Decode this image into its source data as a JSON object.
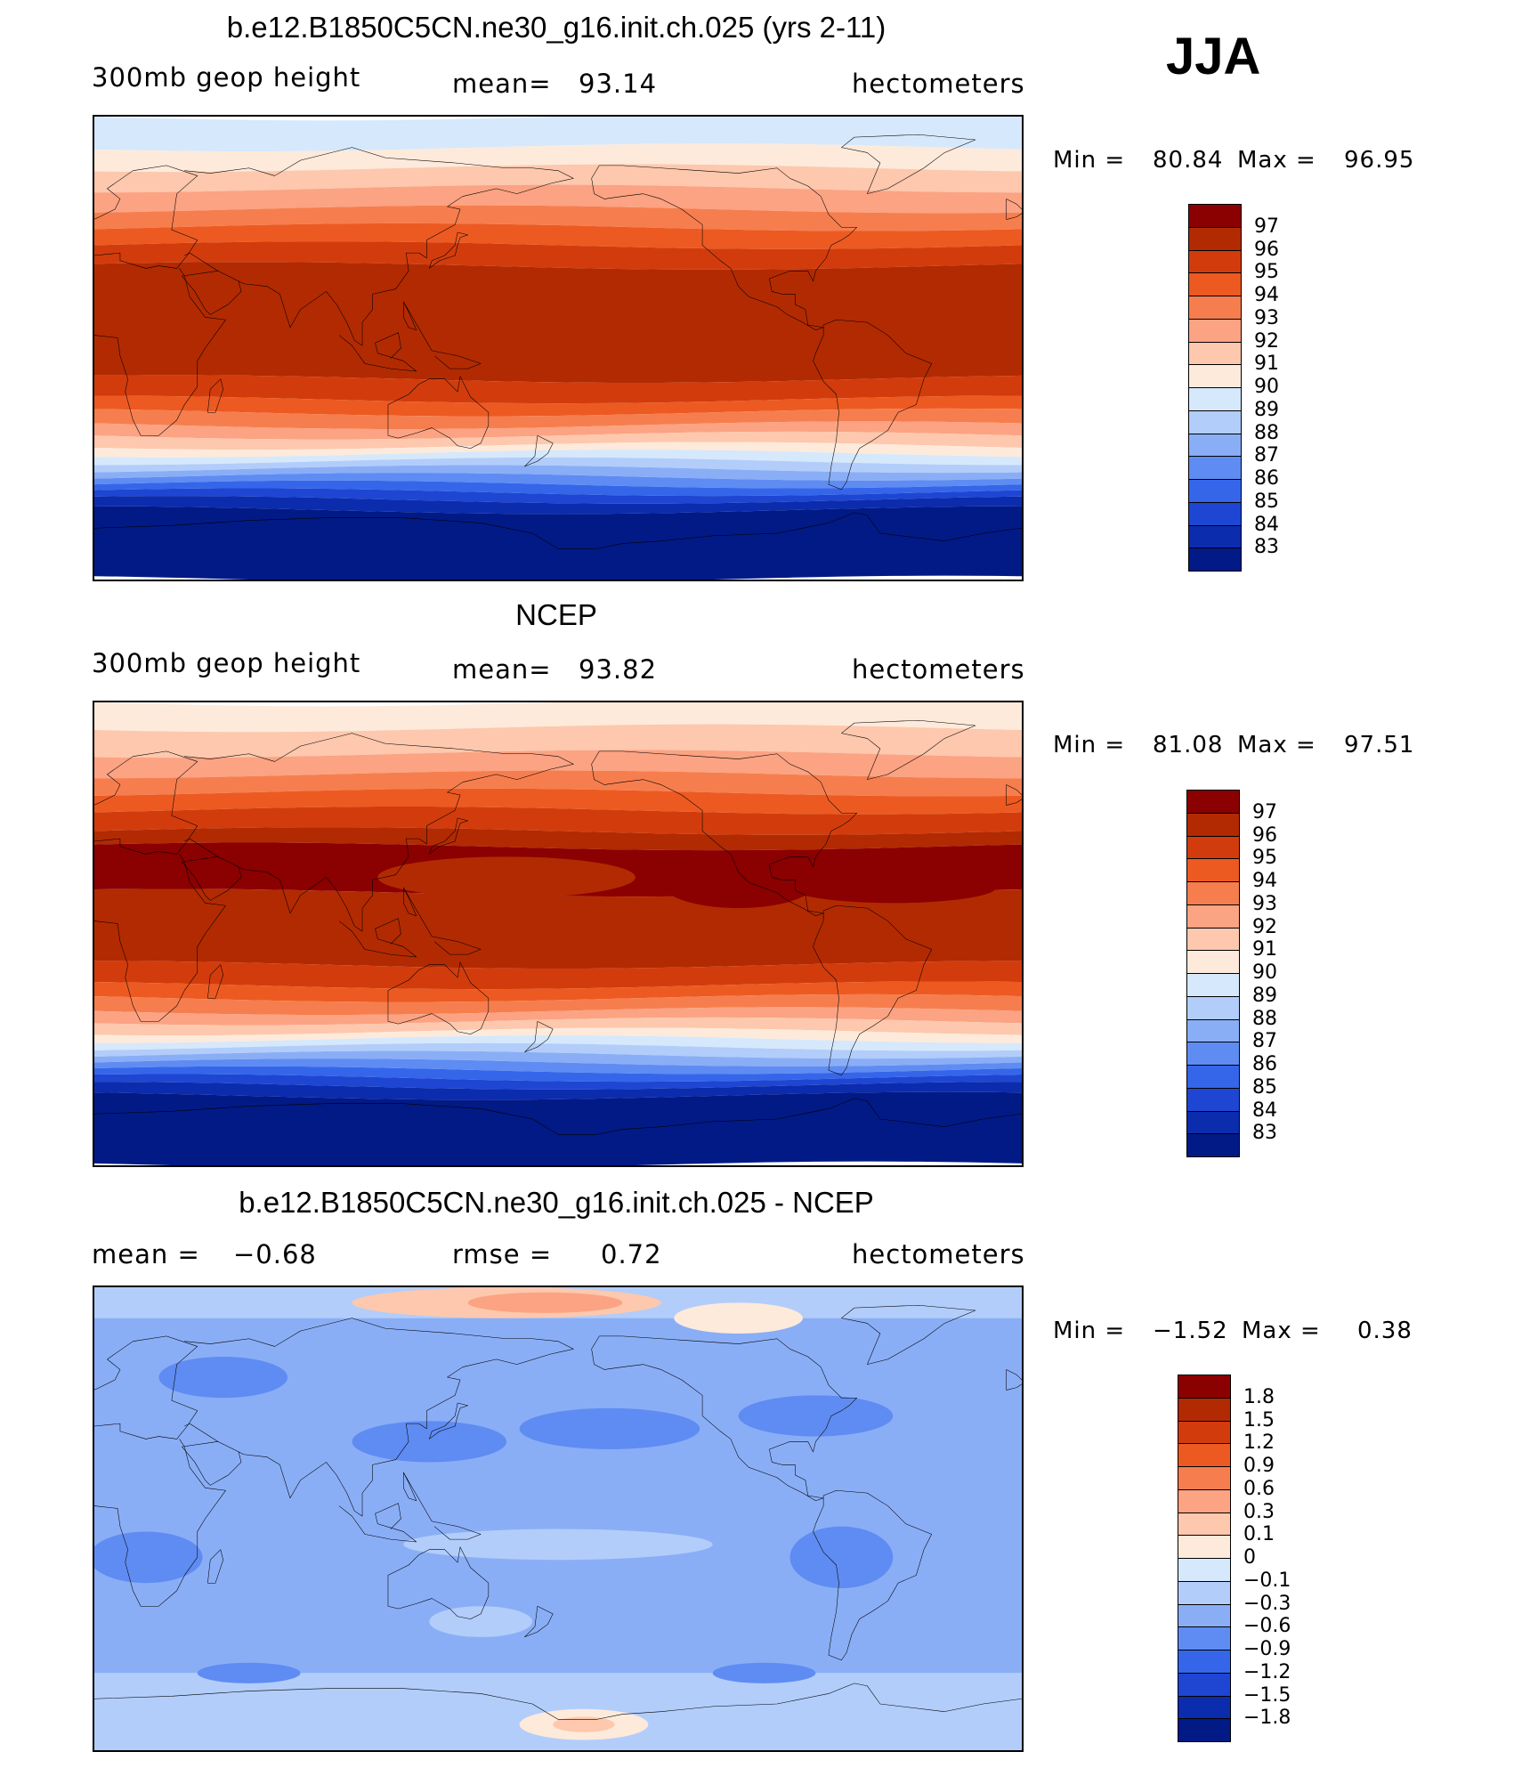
{
  "season": "JJA",
  "units": "hectometers",
  "panels": [
    {
      "title": "b.e12.B1850C5CN.ne30_g16.init.ch.025 (yrs 2-11)",
      "variable": "300mb geop height",
      "stat_label": "mean=",
      "stat_value": "93.14",
      "units": "hectometers",
      "min_label": "Min =",
      "min_value": "80.84",
      "max_label": "Max =",
      "max_value": "96.95",
      "colorbar": {
        "labels": [
          "97",
          "96",
          "95",
          "94",
          "93",
          "92",
          "91",
          "90",
          "89",
          "88",
          "87",
          "86",
          "85",
          "84",
          "83"
        ],
        "colors": [
          "#8b0000",
          "#b22a02",
          "#d23c0c",
          "#ec5a22",
          "#f67e4e",
          "#fba383",
          "#fdc8ad",
          "#fdeadb",
          "#d6e8fb",
          "#b2cdfa",
          "#8aaef6",
          "#5f8cf2",
          "#3566ea",
          "#1e46d2",
          "#0c2cae",
          "#021a86"
        ]
      },
      "bands": [
        {
          "lat_top": 90,
          "lat_bot": 78,
          "color": "#d6e8fb"
        },
        {
          "lat_top": 78,
          "lat_bot": 70,
          "color": "#fdeadb"
        },
        {
          "lat_top": 70,
          "lat_bot": 62,
          "color": "#fdc8ad"
        },
        {
          "lat_top": 62,
          "lat_bot": 54,
          "color": "#fba383"
        },
        {
          "lat_top": 54,
          "lat_bot": 47,
          "color": "#f67e4e"
        },
        {
          "lat_top": 47,
          "lat_bot": 40,
          "color": "#ec5a22"
        },
        {
          "lat_top": 40,
          "lat_bot": 32,
          "color": "#d23c0c"
        },
        {
          "lat_top": 32,
          "lat_bot": -12,
          "color": "#b22a02"
        },
        {
          "lat_top": -12,
          "lat_bot": -20,
          "color": "#d23c0c"
        },
        {
          "lat_top": -20,
          "lat_bot": -25,
          "color": "#ec5a22"
        },
        {
          "lat_top": -25,
          "lat_bot": -30,
          "color": "#f67e4e"
        },
        {
          "lat_top": -30,
          "lat_bot": -34,
          "color": "#fba383"
        },
        {
          "lat_top": -34,
          "lat_bot": -38,
          "color": "#fdc8ad"
        },
        {
          "lat_top": -38,
          "lat_bot": -41,
          "color": "#fdeadb"
        },
        {
          "lat_top": -41,
          "lat_bot": -44,
          "color": "#d6e8fb"
        },
        {
          "lat_top": -44,
          "lat_bot": -47,
          "color": "#b2cdfa"
        },
        {
          "lat_top": -47,
          "lat_bot": -50,
          "color": "#8aaef6"
        },
        {
          "lat_top": -50,
          "lat_bot": -53,
          "color": "#5f8cf2"
        },
        {
          "lat_top": -53,
          "lat_bot": -56,
          "color": "#3566ea"
        },
        {
          "lat_top": -56,
          "lat_bot": -59,
          "color": "#1e46d2"
        },
        {
          "lat_top": -59,
          "lat_bot": -63,
          "color": "#0c2cae"
        },
        {
          "lat_top": -63,
          "lat_bot": -90,
          "color": "#021a86"
        }
      ],
      "blobs": []
    },
    {
      "title": "NCEP",
      "variable": "300mb geop height",
      "stat_label": "mean=",
      "stat_value": "93.82",
      "units": "hectometers",
      "min_label": "Min =",
      "min_value": "81.08",
      "max_label": "Max =",
      "max_value": "97.51",
      "colorbar": {
        "labels": [
          "97",
          "96",
          "95",
          "94",
          "93",
          "92",
          "91",
          "90",
          "89",
          "88",
          "87",
          "86",
          "85",
          "84",
          "83"
        ],
        "colors": [
          "#8b0000",
          "#b22a02",
          "#d23c0c",
          "#ec5a22",
          "#f67e4e",
          "#fba383",
          "#fdc8ad",
          "#fdeadb",
          "#d6e8fb",
          "#b2cdfa",
          "#8aaef6",
          "#5f8cf2",
          "#3566ea",
          "#1e46d2",
          "#0c2cae",
          "#021a86"
        ]
      },
      "bands": [
        {
          "lat_top": 90,
          "lat_bot": 80,
          "color": "#fdeadb"
        },
        {
          "lat_top": 80,
          "lat_bot": 70,
          "color": "#fdc8ad"
        },
        {
          "lat_top": 70,
          "lat_bot": 62,
          "color": "#fba383"
        },
        {
          "lat_top": 62,
          "lat_bot": 55,
          "color": "#f67e4e"
        },
        {
          "lat_top": 55,
          "lat_bot": 48,
          "color": "#ec5a22"
        },
        {
          "lat_top": 48,
          "lat_bot": 40,
          "color": "#d23c0c"
        },
        {
          "lat_top": 40,
          "lat_bot": 34,
          "color": "#b22a02"
        },
        {
          "lat_top": 34,
          "lat_bot": 16,
          "color": "#8b0000"
        },
        {
          "lat_top": 16,
          "lat_bot": -12,
          "color": "#b22a02"
        },
        {
          "lat_top": -12,
          "lat_bot": -20,
          "color": "#d23c0c"
        },
        {
          "lat_top": -20,
          "lat_bot": -25,
          "color": "#ec5a22"
        },
        {
          "lat_top": -25,
          "lat_bot": -30,
          "color": "#f67e4e"
        },
        {
          "lat_top": -30,
          "lat_bot": -34,
          "color": "#fba383"
        },
        {
          "lat_top": -34,
          "lat_bot": -38,
          "color": "#fdc8ad"
        },
        {
          "lat_top": -38,
          "lat_bot": -41,
          "color": "#fdeadb"
        },
        {
          "lat_top": -41,
          "lat_bot": -44,
          "color": "#d6e8fb"
        },
        {
          "lat_top": -44,
          "lat_bot": -47,
          "color": "#b2cdfa"
        },
        {
          "lat_top": -47,
          "lat_bot": -50,
          "color": "#8aaef6"
        },
        {
          "lat_top": -50,
          "lat_bot": -53,
          "color": "#5f8cf2"
        },
        {
          "lat_top": -53,
          "lat_bot": -56,
          "color": "#3566ea"
        },
        {
          "lat_top": -56,
          "lat_bot": -59,
          "color": "#1e46d2"
        },
        {
          "lat_top": -59,
          "lat_bot": -63,
          "color": "#0c2cae"
        },
        {
          "lat_top": -63,
          "lat_bot": -90,
          "color": "#021a86"
        }
      ],
      "blobs": [
        {
          "lon": 160,
          "lat": 22,
          "rlon": 50,
          "rlat": 8,
          "color": "#b22a02"
        },
        {
          "lon": 250,
          "lat": 20,
          "rlon": 30,
          "rlat": 10,
          "color": "#8b0000"
        },
        {
          "lon": 310,
          "lat": 18,
          "rlon": 40,
          "rlat": 6,
          "color": "#8b0000"
        }
      ]
    },
    {
      "title": "b.e12.B1850C5CN.ne30_g16.init.ch.025 - NCEP",
      "variable": "mean =",
      "stat_label": "rmse =",
      "stat_value": "0.72",
      "mean_value": "−0.68",
      "units": "hectometers",
      "min_label": "Min =",
      "min_value": "−1.52",
      "max_label": "Max =",
      "max_value": "0.38",
      "colorbar": {
        "labels": [
          "1.8",
          "1.5",
          "1.2",
          "0.9",
          "0.6",
          "0.3",
          "0.1",
          "0",
          "−0.1",
          "−0.3",
          "−0.6",
          "−0.9",
          "−1.2",
          "−1.5",
          "−1.8"
        ],
        "colors": [
          "#8b0000",
          "#b22a02",
          "#d23c0c",
          "#ec5a22",
          "#f67e4e",
          "#fba383",
          "#fdc8ad",
          "#fdeadb",
          "#d6e8fb",
          "#b2cdfa",
          "#8aaef6",
          "#5f8cf2",
          "#3566ea",
          "#1e46d2",
          "#0c2cae",
          "#021a86"
        ]
      },
      "bands": [
        {
          "lat_top": 90,
          "lat_bot": 78,
          "color": "#b2cdfa"
        },
        {
          "lat_top": 78,
          "lat_bot": -60,
          "color": "#8aaef6"
        },
        {
          "lat_top": -60,
          "lat_bot": -90,
          "color": "#b2cdfa"
        }
      ],
      "blobs": [
        {
          "lon": 160,
          "lat": 84,
          "rlon": 60,
          "rlat": 6,
          "color": "#fdc8ad"
        },
        {
          "lon": 175,
          "lat": 84,
          "rlon": 30,
          "rlat": 4,
          "color": "#fba383"
        },
        {
          "lon": 250,
          "lat": 78,
          "rlon": 25,
          "rlat": 6,
          "color": "#fdeadb"
        },
        {
          "lon": 130,
          "lat": 30,
          "rlon": 30,
          "rlat": 8,
          "color": "#5f8cf2"
        },
        {
          "lon": 200,
          "lat": 35,
          "rlon": 35,
          "rlat": 8,
          "color": "#5f8cf2"
        },
        {
          "lon": 50,
          "lat": 55,
          "rlon": 25,
          "rlat": 8,
          "color": "#5f8cf2"
        },
        {
          "lon": 280,
          "lat": 40,
          "rlon": 30,
          "rlat": 8,
          "color": "#5f8cf2"
        },
        {
          "lon": 20,
          "lat": -15,
          "rlon": 22,
          "rlat": 10,
          "color": "#5f8cf2"
        },
        {
          "lon": 290,
          "lat": -15,
          "rlon": 20,
          "rlat": 12,
          "color": "#5f8cf2"
        },
        {
          "lon": 180,
          "lat": -10,
          "rlon": 60,
          "rlat": 6,
          "color": "#b2cdfa"
        },
        {
          "lon": 150,
          "lat": -40,
          "rlon": 20,
          "rlat": 6,
          "color": "#b2cdfa"
        },
        {
          "lon": 190,
          "lat": -80,
          "rlon": 25,
          "rlat": 6,
          "color": "#fdeadb"
        },
        {
          "lon": 190,
          "lat": -80,
          "rlon": 12,
          "rlat": 3,
          "color": "#fdc8ad"
        },
        {
          "lon": 60,
          "lat": -60,
          "rlon": 20,
          "rlat": 4,
          "color": "#5f8cf2"
        },
        {
          "lon": 260,
          "lat": -60,
          "rlon": 20,
          "rlat": 4,
          "color": "#5f8cf2"
        }
      ]
    }
  ]
}
